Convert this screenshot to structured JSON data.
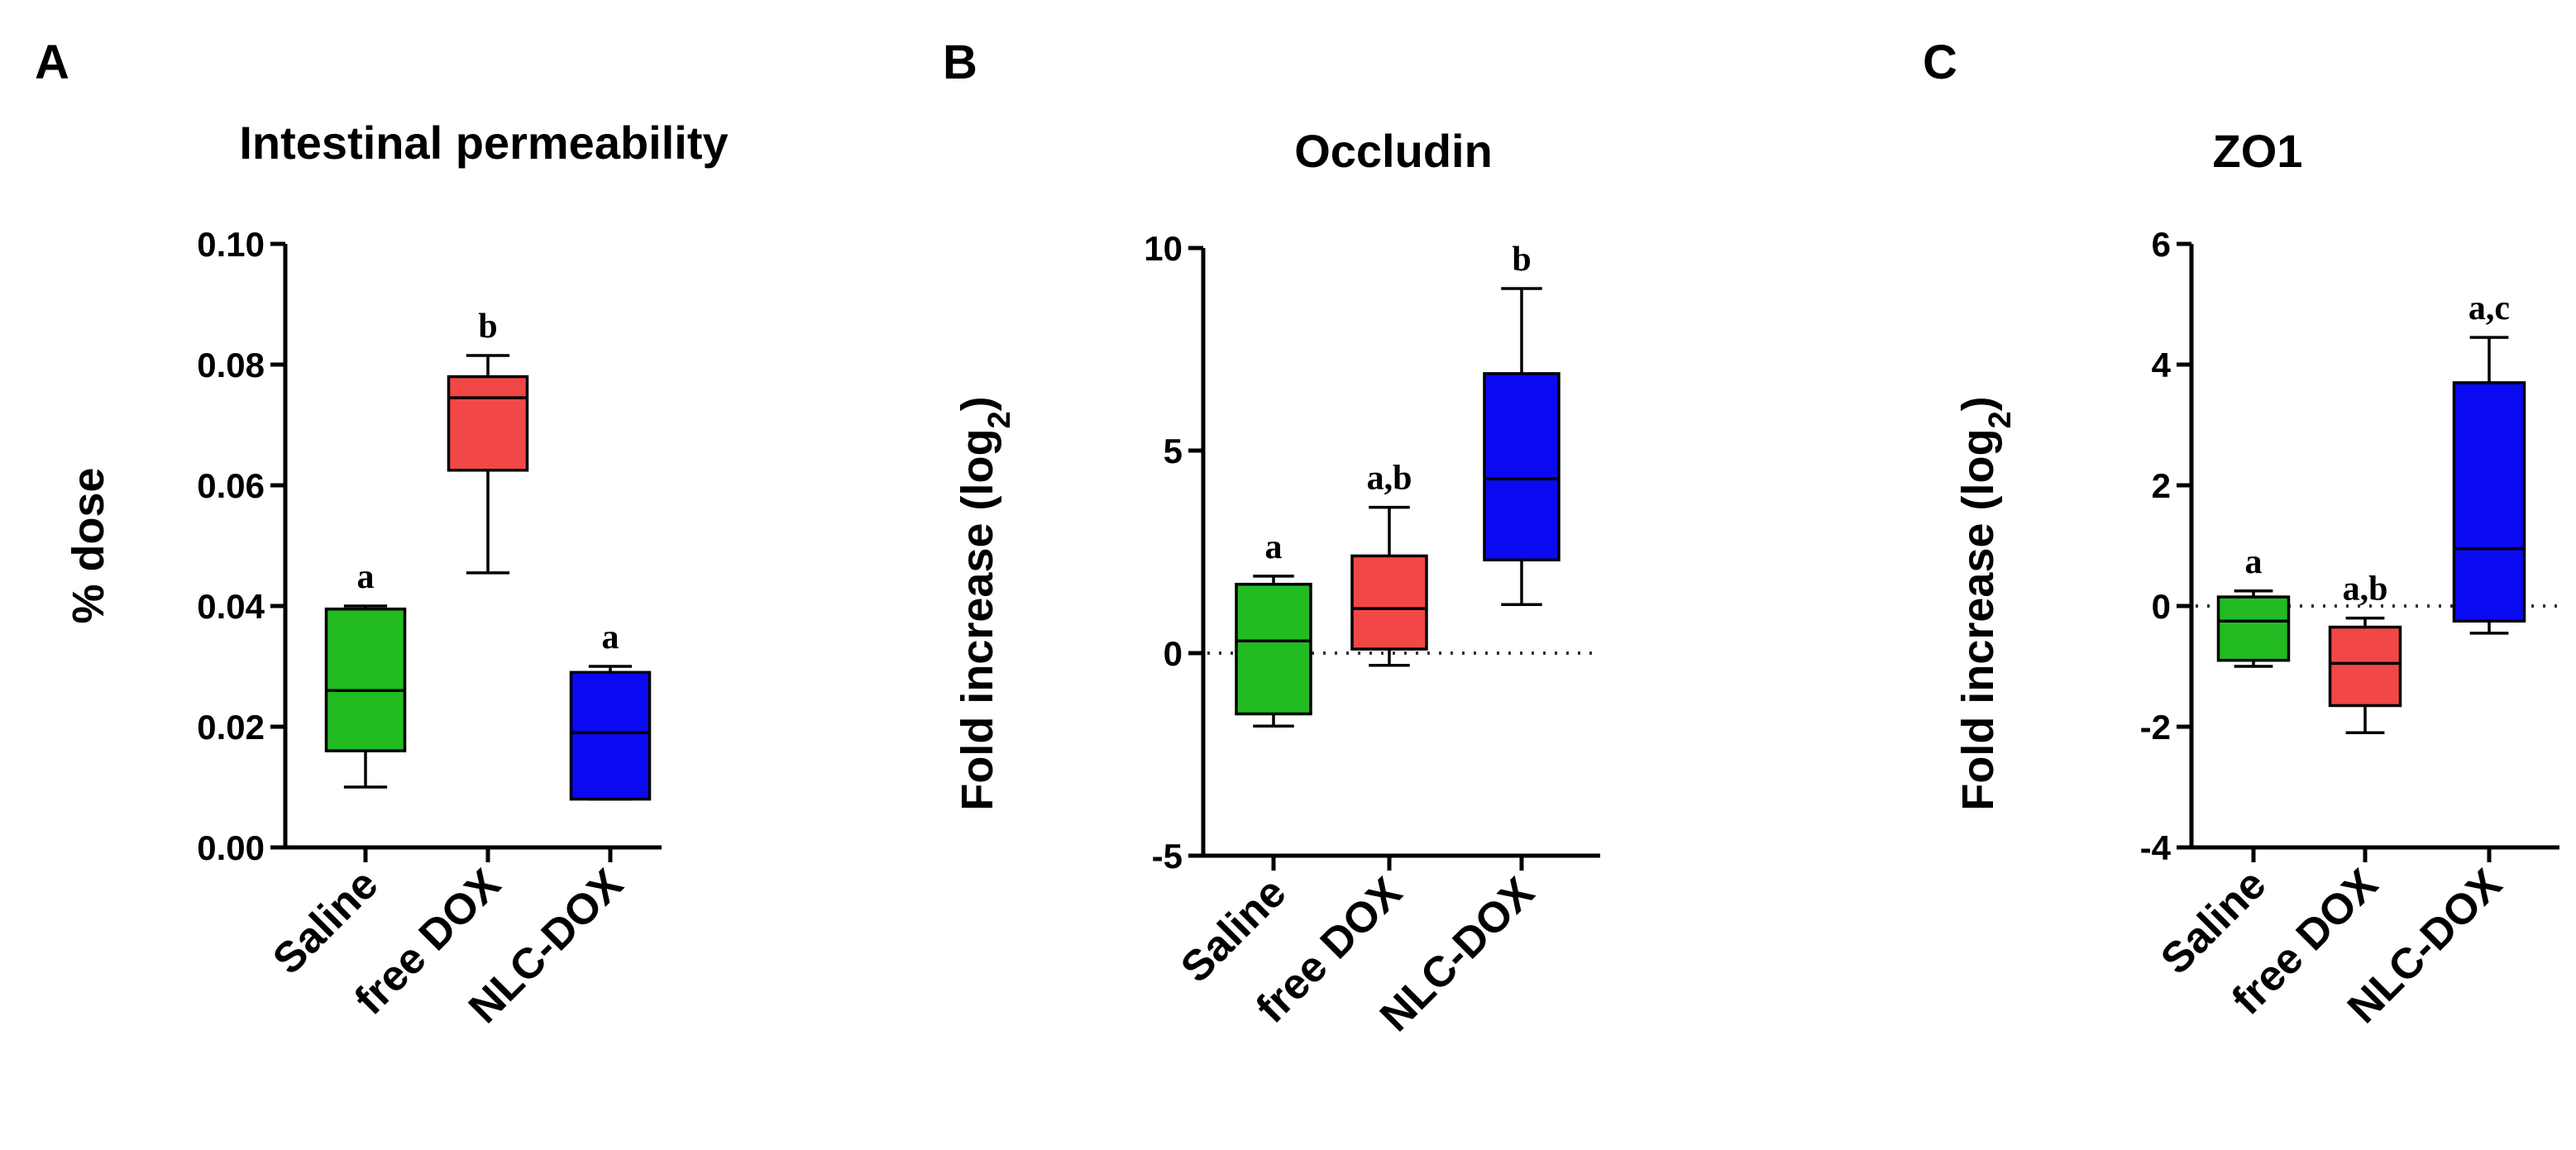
{
  "colors": {
    "Saline": "#22bb22",
    "free DOX": "#f24747",
    "NLC-DOX": "#0a0af2"
  },
  "chart_data": [
    {
      "panel": "A",
      "type": "box",
      "title": "Intestinal permeability",
      "ylabel": "% dose",
      "ylim": [
        0,
        0.1
      ],
      "yticks": [
        "0.00",
        "0.02",
        "0.04",
        "0.06",
        "0.08",
        "0.10"
      ],
      "yticks_values": [
        0,
        0.02,
        0.04,
        0.06,
        0.08,
        0.1
      ],
      "reference_line": null,
      "categories": [
        "Saline",
        "free DOX",
        "NLC-DOX"
      ],
      "boxes": [
        {
          "category": "Saline",
          "min": 0.01,
          "q1": 0.016,
          "median": 0.026,
          "q3": 0.0395,
          "max": 0.04,
          "sig": "a"
        },
        {
          "category": "free DOX",
          "min": 0.0455,
          "q1": 0.0625,
          "median": 0.0745,
          "q3": 0.078,
          "max": 0.0815,
          "sig": "b"
        },
        {
          "category": "NLC-DOX",
          "min": 0.008,
          "q1": 0.008,
          "median": 0.019,
          "q3": 0.029,
          "max": 0.03,
          "sig": "a"
        }
      ]
    },
    {
      "panel": "B",
      "type": "box",
      "title": "Occludin",
      "ylabel": "Fold increase (log",
      "ylabel_sub": "2",
      "ylabel_end": ")",
      "ylim": [
        -5,
        10
      ],
      "yticks": [
        "-5",
        "0",
        "5",
        "10"
      ],
      "yticks_values": [
        -5,
        0,
        5,
        10
      ],
      "reference_line": 0,
      "categories": [
        "Saline",
        "free DOX",
        "NLC-DOX"
      ],
      "boxes": [
        {
          "category": "Saline",
          "min": -1.8,
          "q1": -1.5,
          "median": 0.3,
          "q3": 1.7,
          "max": 1.9,
          "sig": "a"
        },
        {
          "category": "free DOX",
          "min": -0.3,
          "q1": 0.1,
          "median": 1.1,
          "q3": 2.4,
          "max": 3.6,
          "sig": "a,b"
        },
        {
          "category": "NLC-DOX",
          "min": 1.2,
          "q1": 2.3,
          "median": 4.3,
          "q3": 6.9,
          "max": 9.0,
          "sig": "b"
        }
      ]
    },
    {
      "panel": "C",
      "type": "box",
      "title": "ZO1",
      "ylabel": "Fold increase (log",
      "ylabel_sub": "2",
      "ylabel_end": ")",
      "ylim": [
        -4,
        6
      ],
      "yticks": [
        "-4",
        "-2",
        "0",
        "2",
        "4",
        "6"
      ],
      "yticks_values": [
        -4,
        -2,
        0,
        2,
        4,
        6
      ],
      "reference_line": 0,
      "categories": [
        "Saline",
        "free DOX",
        "NLC-DOX"
      ],
      "boxes": [
        {
          "category": "Saline",
          "min": -1.0,
          "q1": -0.9,
          "median": -0.25,
          "q3": 0.15,
          "max": 0.25,
          "sig": "a"
        },
        {
          "category": "free DOX",
          "min": -2.1,
          "q1": -1.65,
          "median": -0.95,
          "q3": -0.35,
          "max": -0.2,
          "sig": "a,b"
        },
        {
          "category": "NLC-DOX",
          "min": -0.45,
          "q1": -0.25,
          "median": 0.95,
          "q3": 3.7,
          "max": 4.45,
          "sig": "a,c"
        }
      ]
    }
  ]
}
